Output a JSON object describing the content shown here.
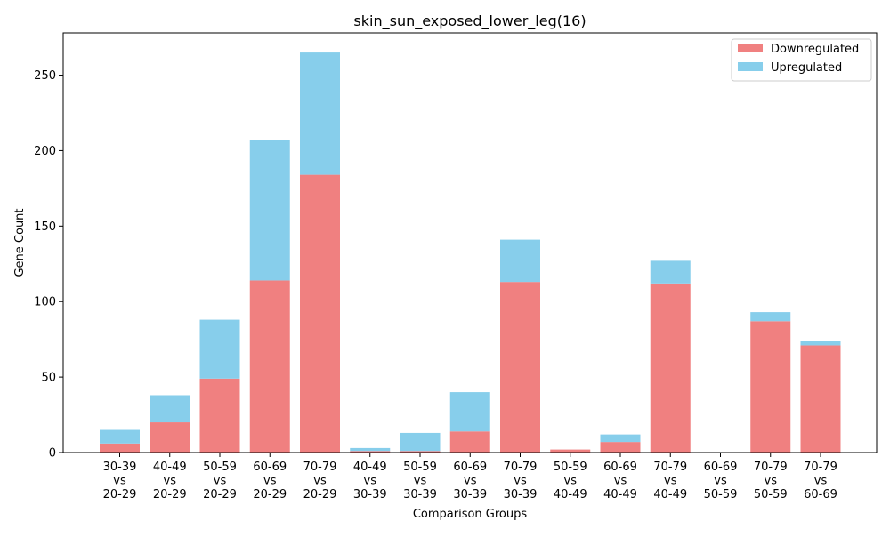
{
  "chart_data": {
    "type": "bar",
    "stacked": true,
    "title": "skin_sun_exposed_lower_leg(16)",
    "xlabel": "Comparison Groups",
    "ylabel": "Gene Count",
    "ylim": [
      0,
      278
    ],
    "yticks": [
      0,
      50,
      100,
      150,
      200,
      250
    ],
    "grid": false,
    "legend_position": "top-right",
    "categories": [
      [
        "30-39",
        "vs",
        "20-29"
      ],
      [
        "40-49",
        "vs",
        "20-29"
      ],
      [
        "50-59",
        "vs",
        "20-29"
      ],
      [
        "60-69",
        "vs",
        "20-29"
      ],
      [
        "70-79",
        "vs",
        "20-29"
      ],
      [
        "40-49",
        "vs",
        "30-39"
      ],
      [
        "50-59",
        "vs",
        "30-39"
      ],
      [
        "60-69",
        "vs",
        "30-39"
      ],
      [
        "70-79",
        "vs",
        "30-39"
      ],
      [
        "50-59",
        "vs",
        "40-49"
      ],
      [
        "60-69",
        "vs",
        "40-49"
      ],
      [
        "70-79",
        "vs",
        "40-49"
      ],
      [
        "60-69",
        "vs",
        "50-59"
      ],
      [
        "70-79",
        "vs",
        "50-59"
      ],
      [
        "70-79",
        "vs",
        "60-69"
      ]
    ],
    "series": [
      {
        "name": "Downregulated",
        "color": "#f08080",
        "values": [
          6,
          20,
          49,
          114,
          184,
          1,
          1,
          14,
          113,
          2,
          7,
          112,
          0,
          87,
          71
        ]
      },
      {
        "name": "Upregulated",
        "color": "#87ceeb",
        "values": [
          9,
          18,
          39,
          93,
          81,
          2,
          12,
          26,
          28,
          0,
          5,
          15,
          0,
          6,
          3
        ]
      }
    ]
  }
}
